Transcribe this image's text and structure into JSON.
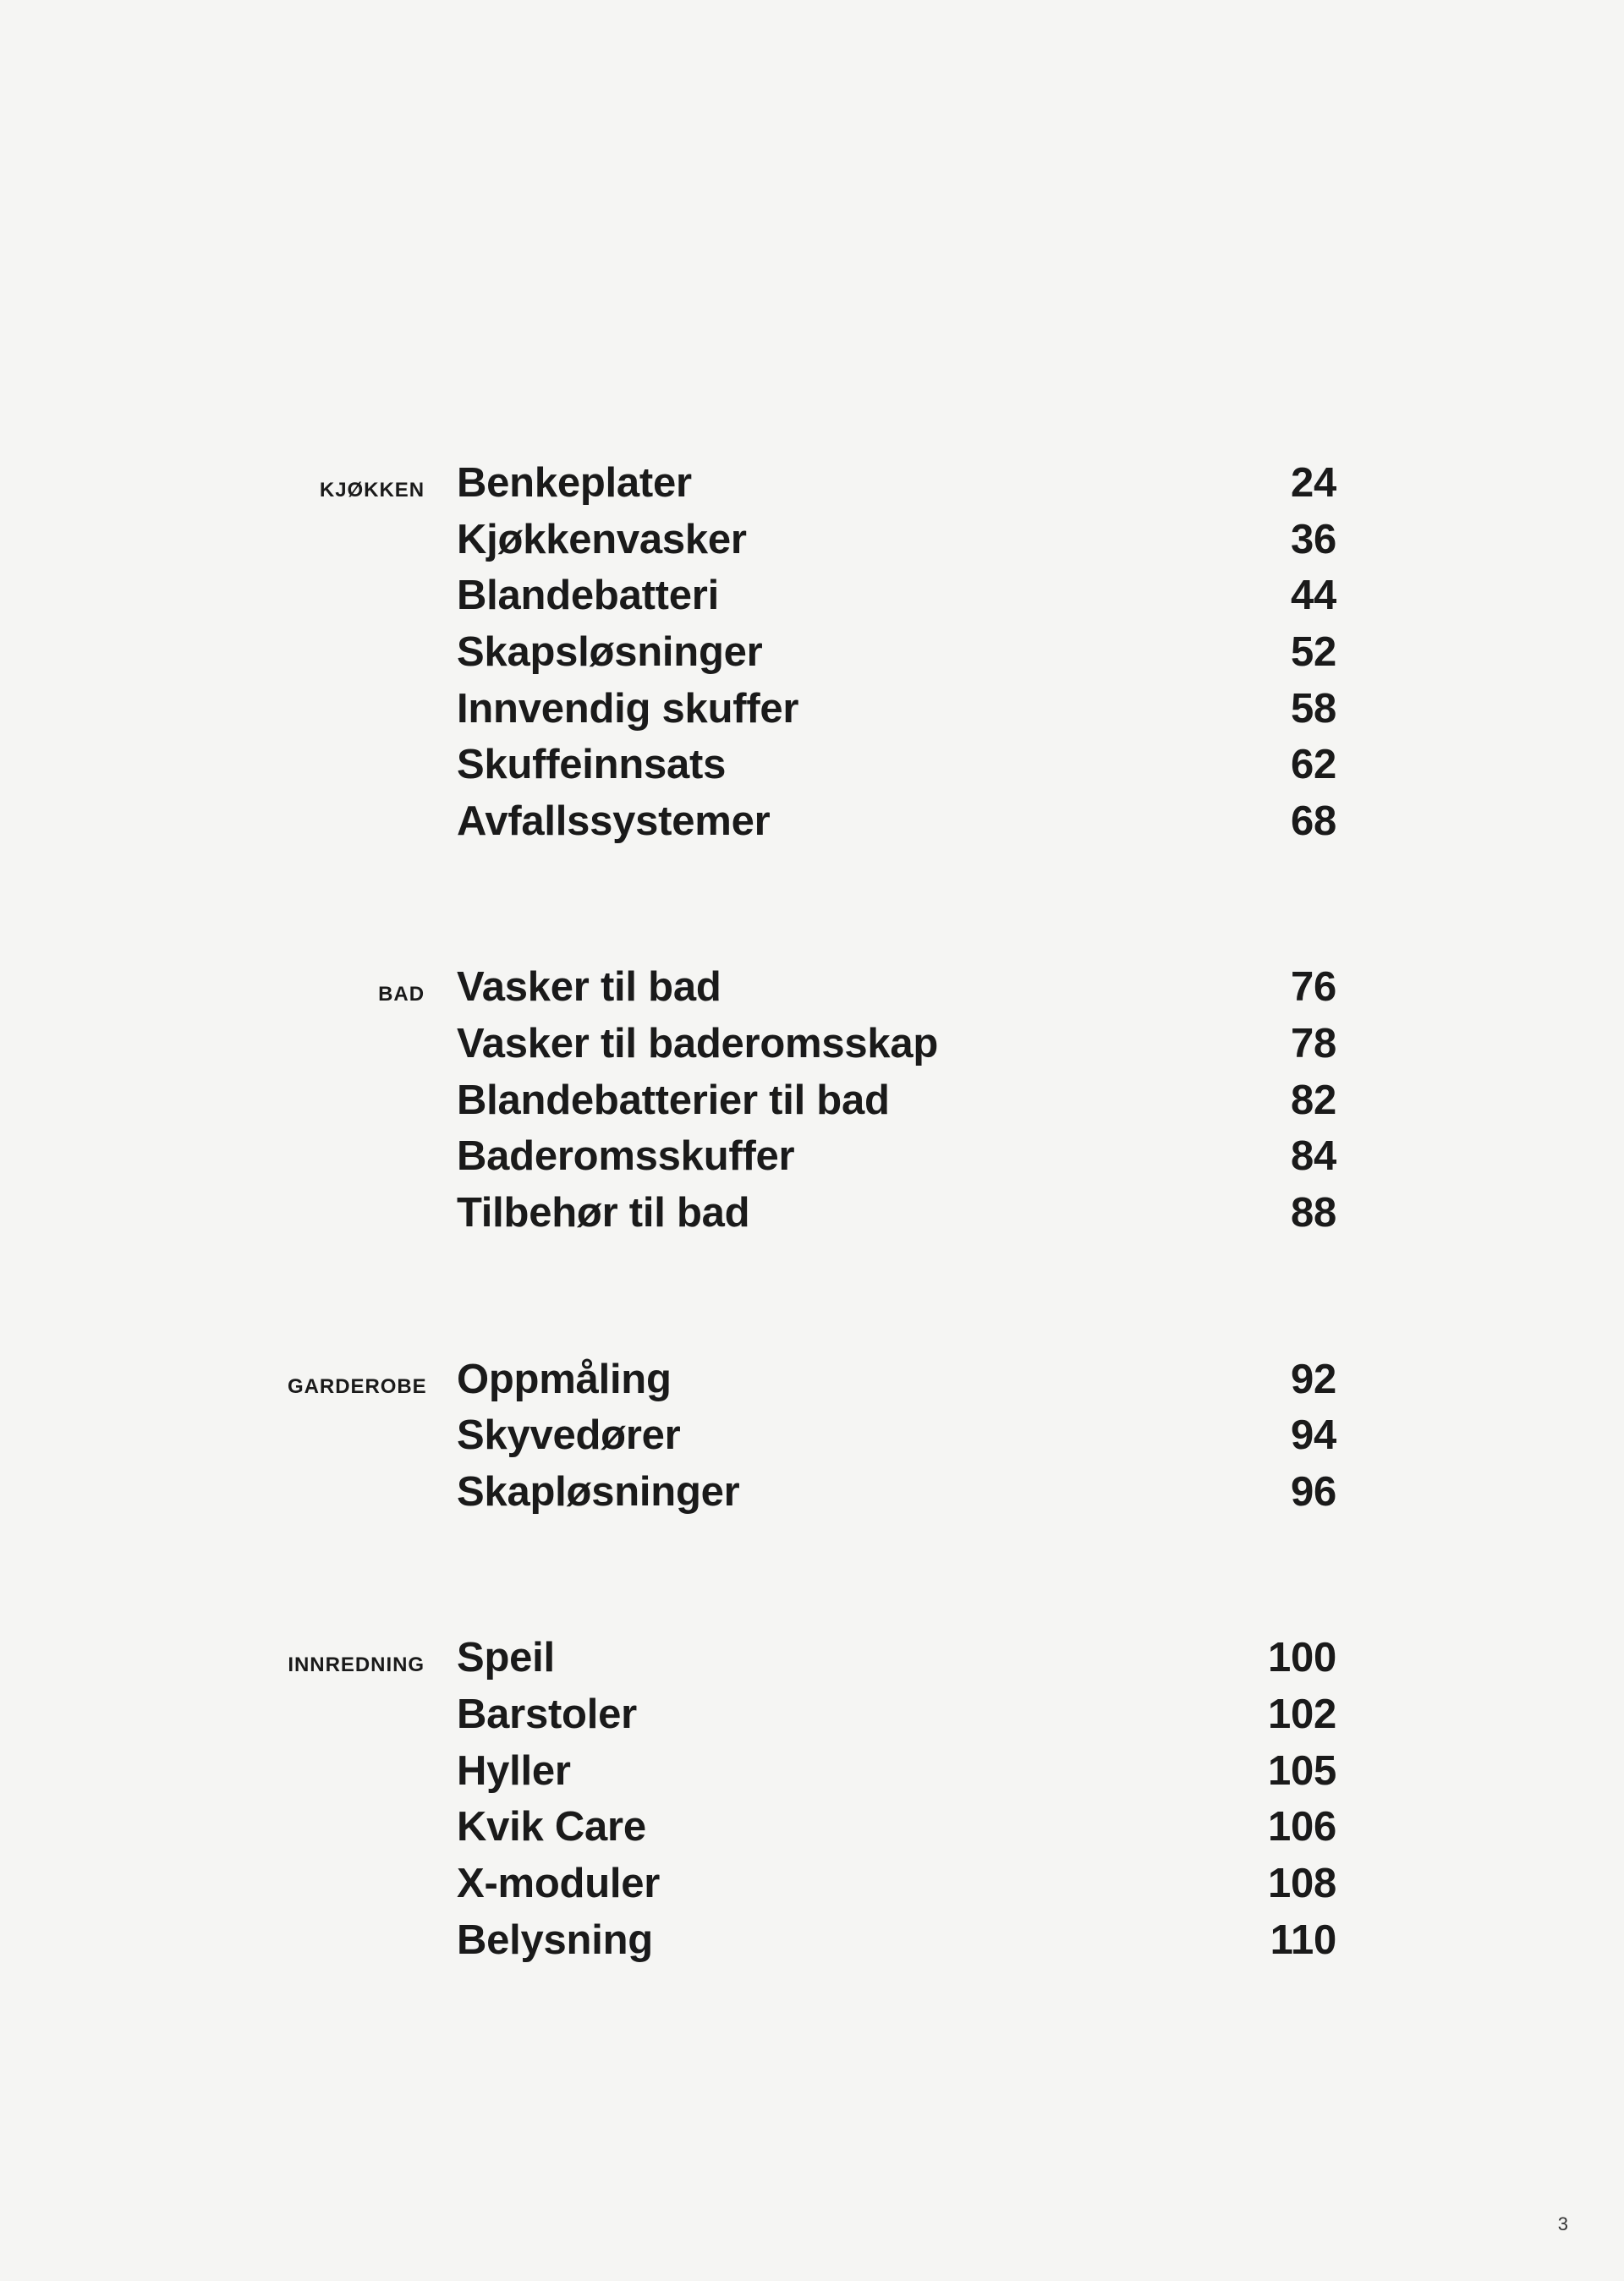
{
  "background_color": "#f5f5f3",
  "text_color": "#1a1a1a",
  "page_number": "3",
  "category_label_fontsize": 24,
  "item_fontsize": 49,
  "sections": [
    {
      "category": "KJØKKEN",
      "items": [
        {
          "title": "Benkeplater",
          "page": "24"
        },
        {
          "title": "Kjøkkenvasker",
          "page": "36"
        },
        {
          "title": "Blandebatteri",
          "page": "44"
        },
        {
          "title": "Skapsløsninger",
          "page": "52"
        },
        {
          "title": "Innvendig skuffer",
          "page": "58"
        },
        {
          "title": "Skuffeinnsats",
          "page": "62"
        },
        {
          "title": "Avfallssystemer",
          "page": "68"
        }
      ]
    },
    {
      "category": "BAD",
      "items": [
        {
          "title": "Vasker til bad",
          "page": "76"
        },
        {
          "title": "Vasker til baderomsskap",
          "page": "78"
        },
        {
          "title": "Blandebatterier til bad",
          "page": "82"
        },
        {
          "title": "Baderomsskuffer",
          "page": "84"
        },
        {
          "title": "Tilbehør til bad",
          "page": "88"
        }
      ]
    },
    {
      "category": "GARDEROBE",
      "items": [
        {
          "title": "Oppmåling",
          "page": "92"
        },
        {
          "title": "Skyvedører",
          "page": "94"
        },
        {
          "title": "Skapløsninger",
          "page": "96"
        }
      ]
    },
    {
      "category": "INNREDNING",
      "items": [
        {
          "title": "Speil",
          "page": "100"
        },
        {
          "title": "Barstoler",
          "page": "102"
        },
        {
          "title": "Hyller",
          "page": "105"
        },
        {
          "title": "Kvik Care",
          "page": "106"
        },
        {
          "title": "X-moduler",
          "page": "108"
        },
        {
          "title": "Belysning",
          "page": "110"
        }
      ]
    }
  ]
}
